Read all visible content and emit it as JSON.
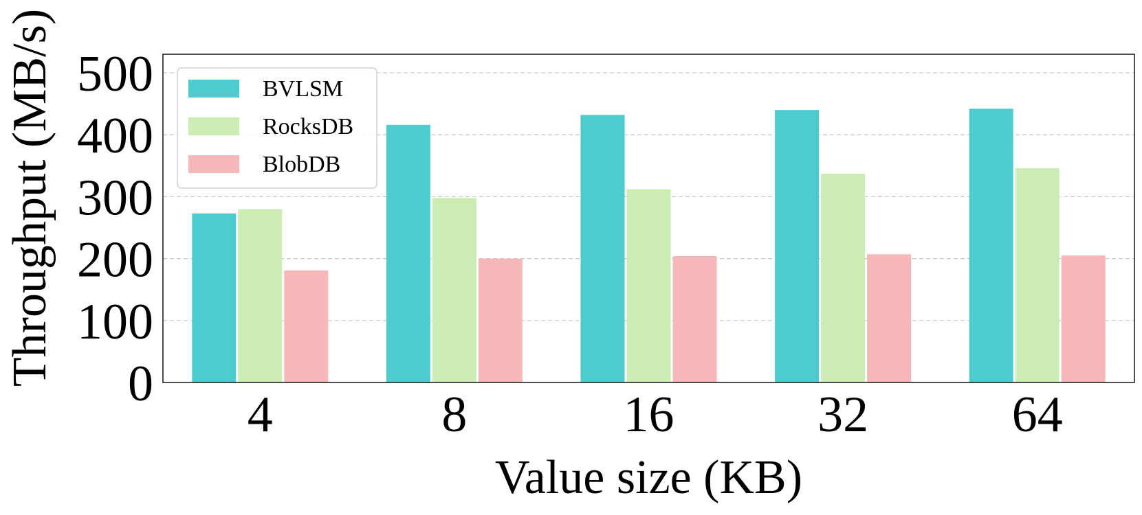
{
  "chart_data": {
    "type": "bar",
    "title": "",
    "xlabel": "Value size (KB)",
    "ylabel": "Throughput (MB/s)",
    "categories": [
      "4",
      "8",
      "16",
      "32",
      "64"
    ],
    "ylim": [
      0,
      530
    ],
    "yticks": [
      0,
      100,
      200,
      300,
      400,
      500
    ],
    "grid": "horizontal-dashed",
    "legend_position": "top-left",
    "series": [
      {
        "name": "BVLSM",
        "color": "#4ecbce",
        "values": [
          273,
          416,
          432,
          440,
          442
        ]
      },
      {
        "name": "RocksDB",
        "color": "#cbedb4",
        "values": [
          280,
          298,
          312,
          337,
          346
        ]
      },
      {
        "name": "BlobDB",
        "color": "#f5b7b7",
        "values": [
          181,
          200,
          204,
          207,
          205
        ]
      }
    ]
  }
}
